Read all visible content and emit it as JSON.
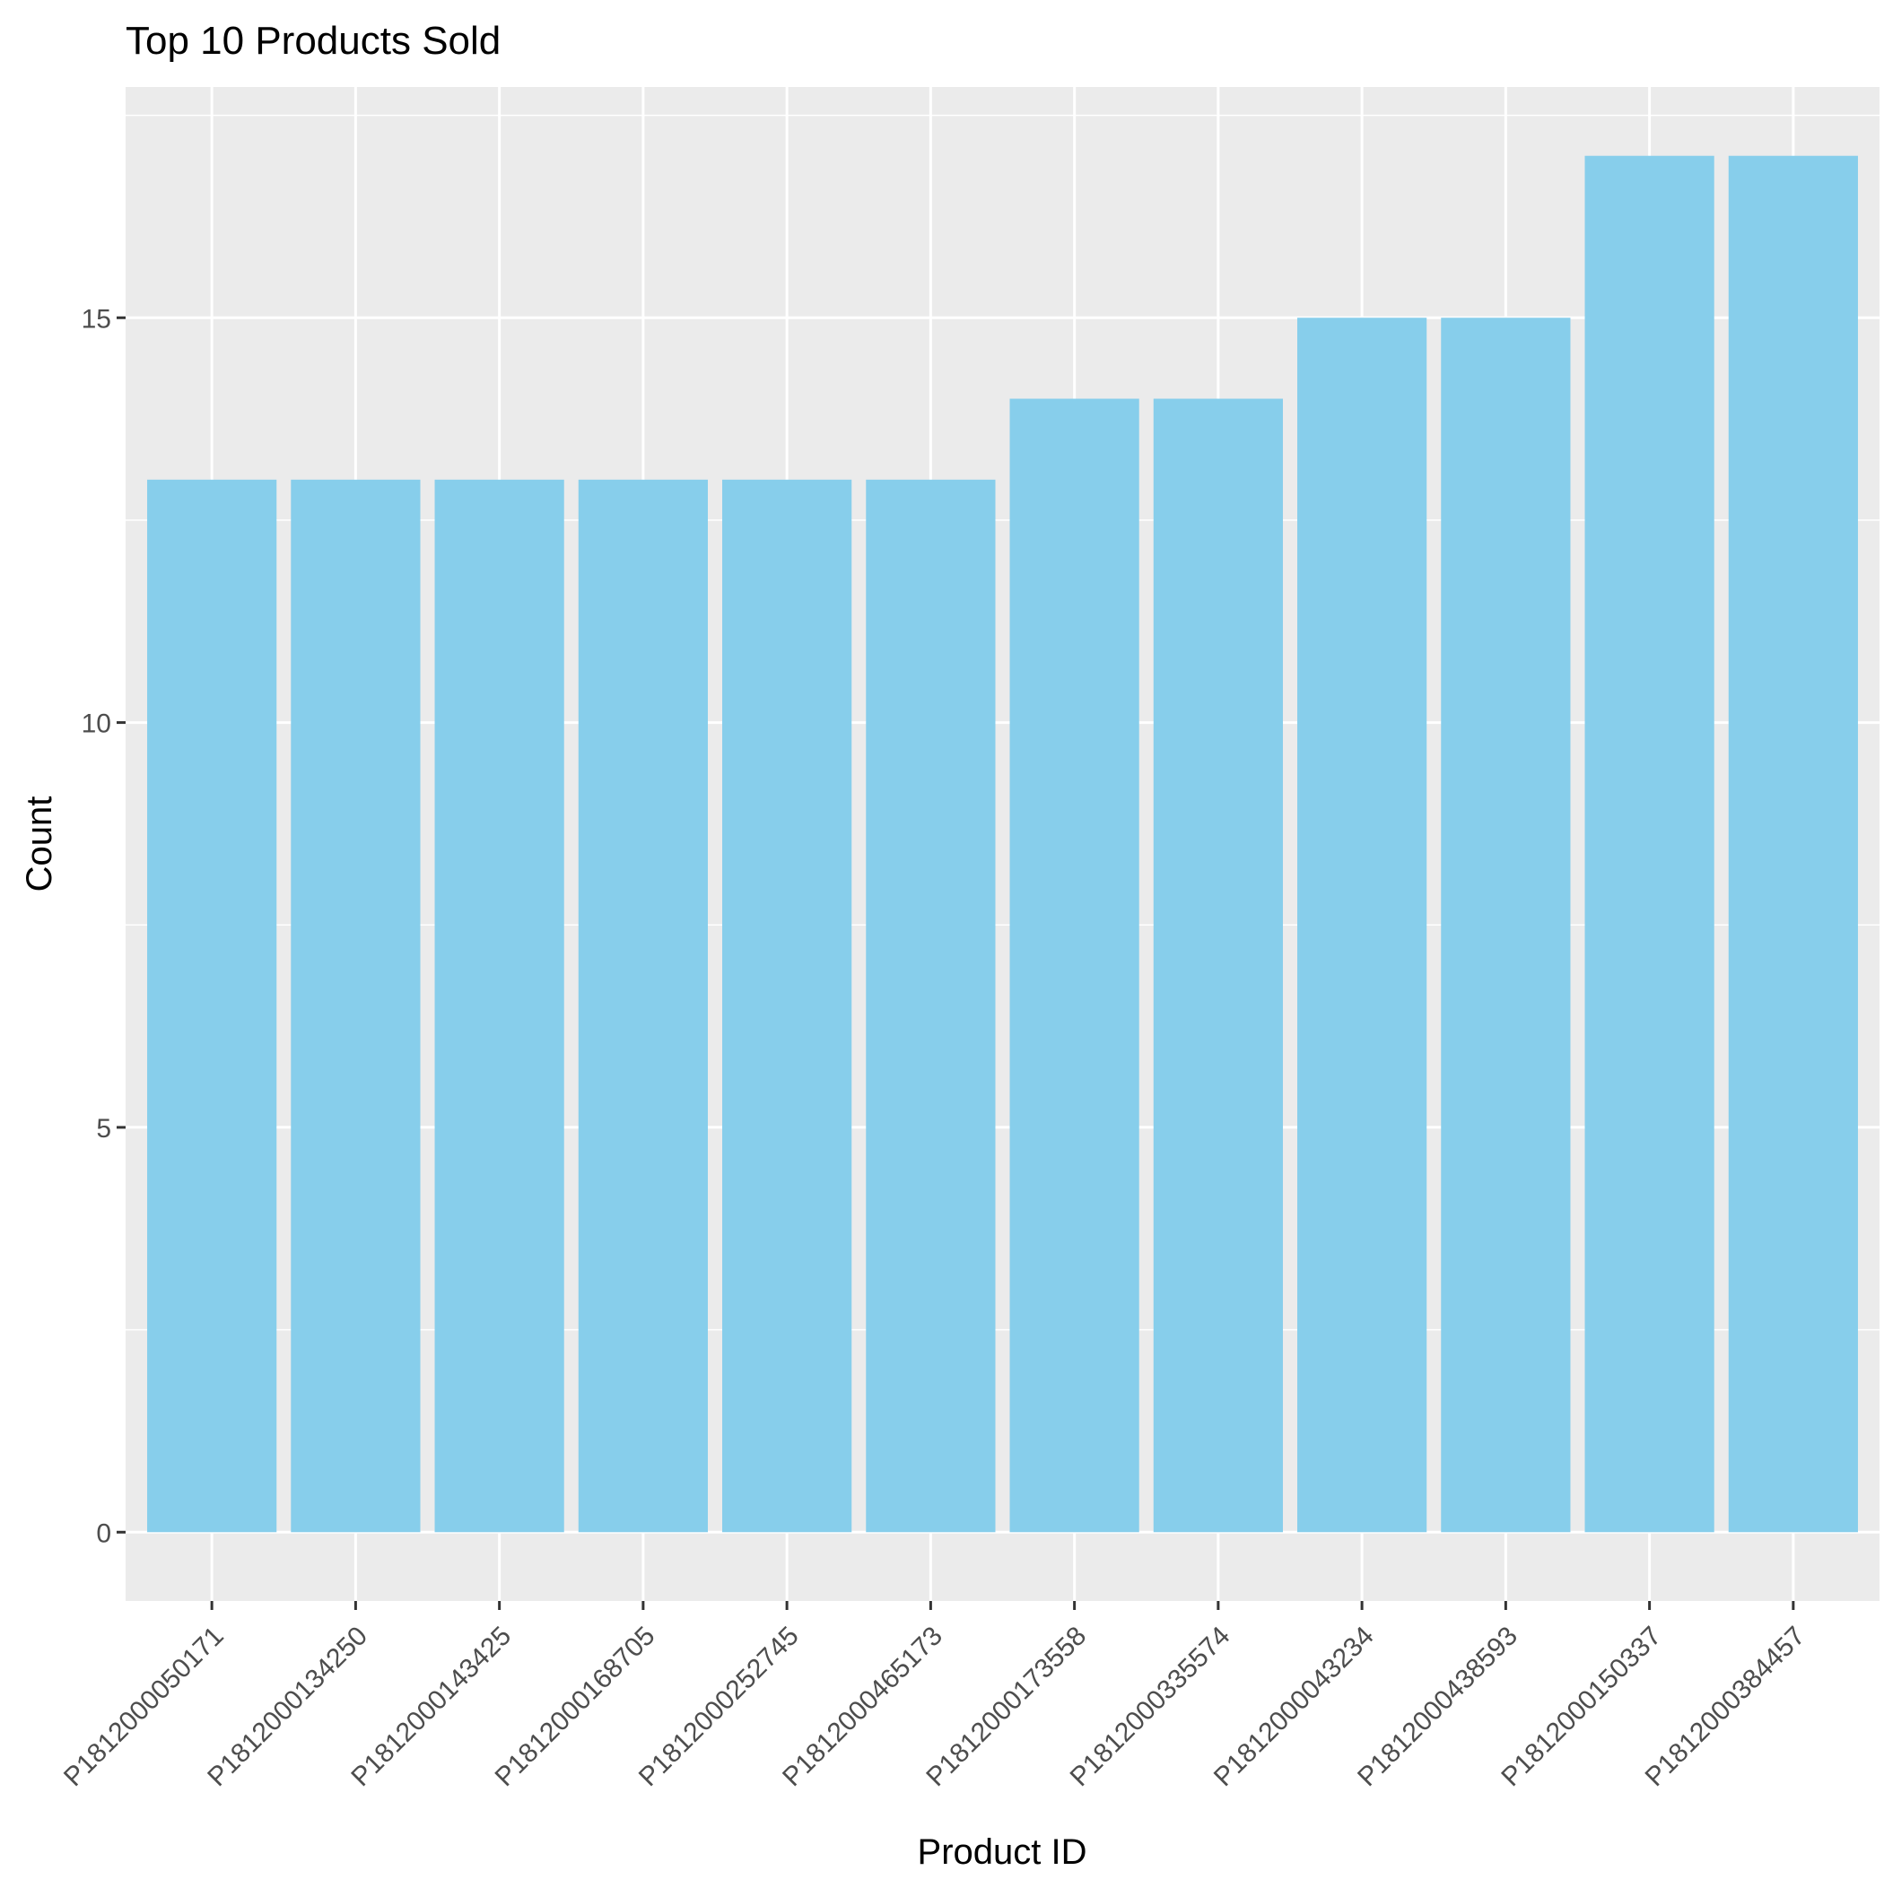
{
  "chart_data": {
    "type": "bar",
    "title": "Top 10 Products Sold",
    "xlabel": "Product ID",
    "ylabel": "Count",
    "categories": [
      "P1812000050171",
      "P1812000134250",
      "P1812000143425",
      "P1812000168705",
      "P1812000252745",
      "P1812000465173",
      "P1812000173558",
      "P1812000335574",
      "P1812000043234",
      "P1812000438593",
      "P1812000150337",
      "P1812000384457"
    ],
    "values": [
      13,
      13,
      13,
      13,
      13,
      13,
      14,
      14,
      15,
      15,
      17,
      17
    ],
    "ylim": [
      -0.85,
      17.85
    ],
    "yticks": [
      0,
      5,
      10,
      15
    ],
    "ytick_labels": [
      "0",
      "5",
      "10",
      "15"
    ],
    "grid": true,
    "legend": "none",
    "colors": {
      "bar": "#87CEEB",
      "panel": "#EBEBEB",
      "grid": "#FFFFFF"
    }
  }
}
